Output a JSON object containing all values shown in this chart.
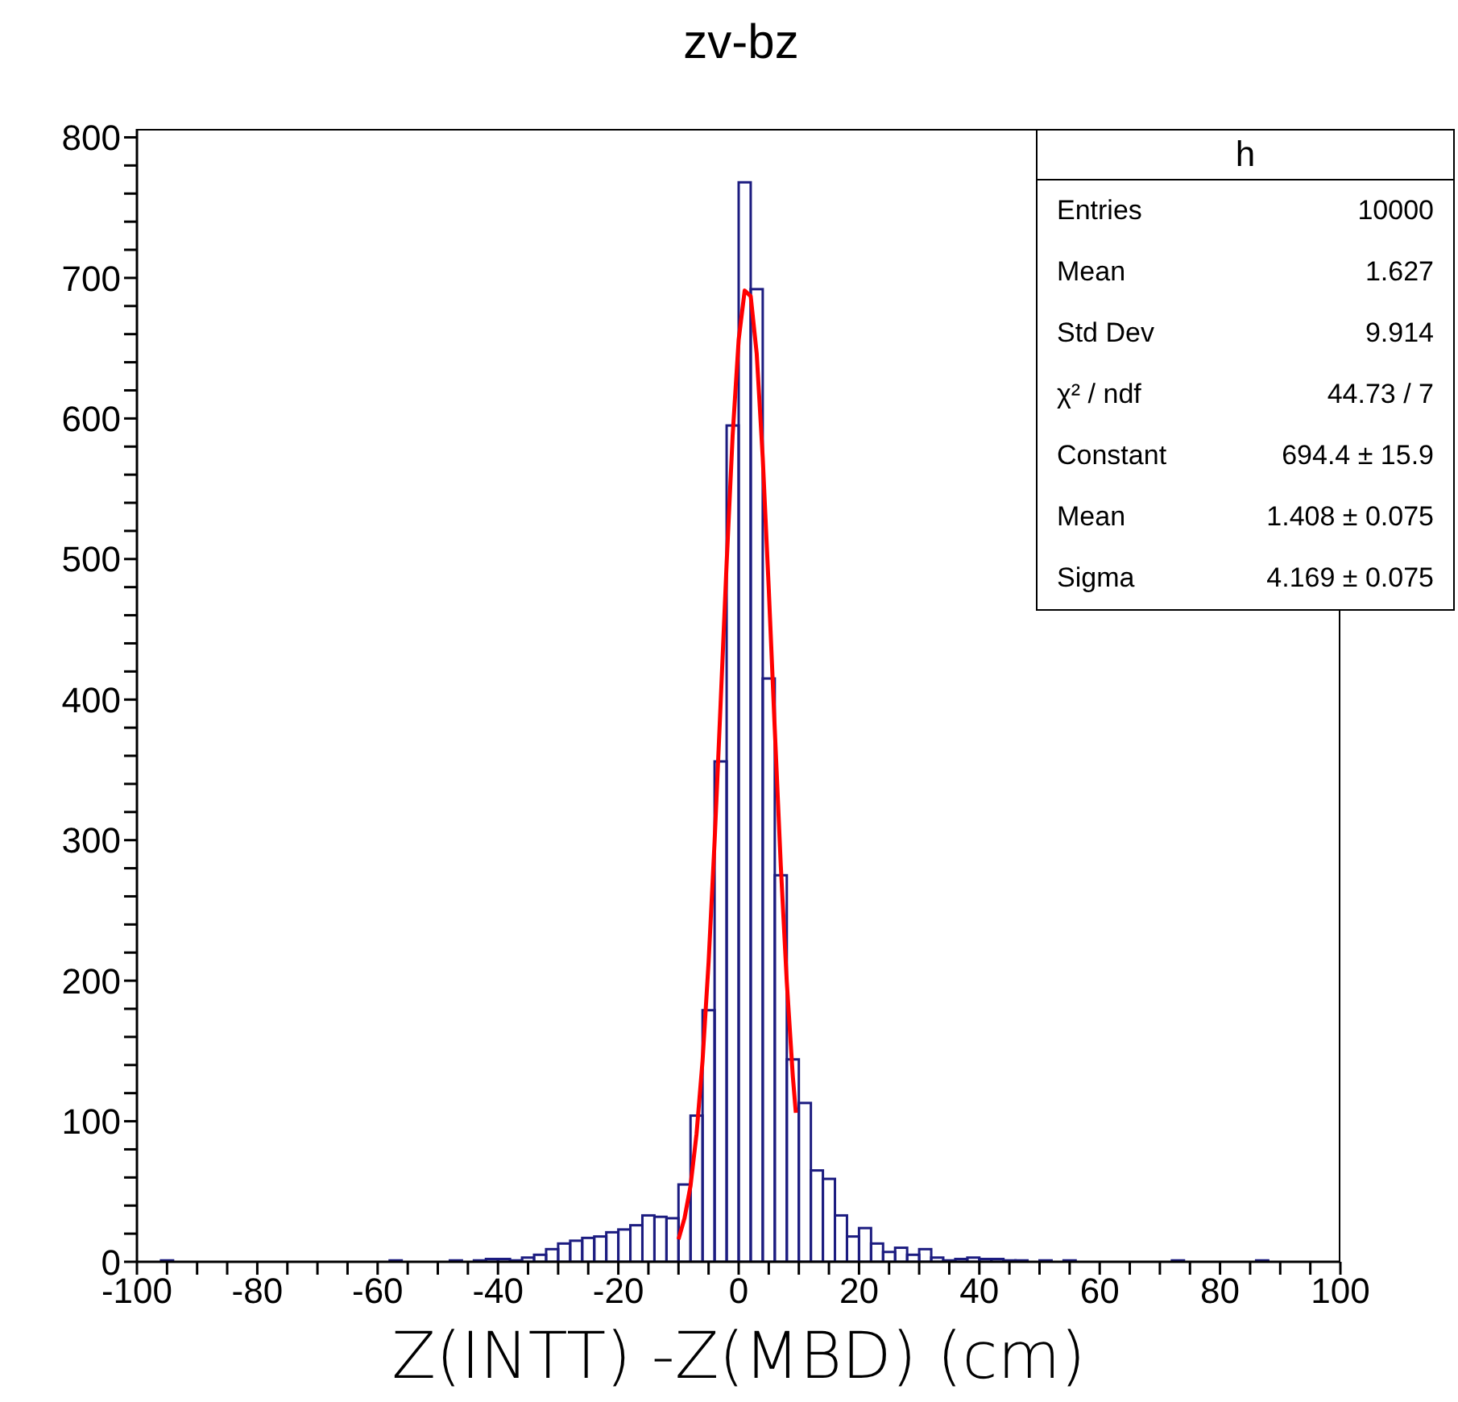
{
  "chart_data": {
    "type": "histogram",
    "title": "zv-bz",
    "xlabel": "Z(INTT) -Z(MBD) (cm)",
    "bins": [
      -100,
      -98,
      -96,
      -94,
      -92,
      -90,
      -88,
      -86,
      -84,
      -82,
      -80,
      -78,
      -76,
      -74,
      -72,
      -70,
      -68,
      -66,
      -64,
      -62,
      -60,
      -58,
      -56,
      -54,
      -52,
      -50,
      -48,
      -46,
      -44,
      -42,
      -40,
      -38,
      -36,
      -34,
      -32,
      -30,
      -28,
      -26,
      -24,
      -22,
      -20,
      -18,
      -16,
      -14,
      -12,
      -10,
      -8,
      -6,
      -4,
      -2,
      0,
      2,
      4,
      6,
      8,
      10,
      12,
      14,
      16,
      18,
      20,
      22,
      24,
      26,
      28,
      30,
      32,
      34,
      36,
      38,
      40,
      42,
      44,
      46,
      48,
      50,
      52,
      54,
      56,
      58,
      60,
      62,
      64,
      66,
      68,
      70,
      72,
      74,
      76,
      78,
      80,
      82,
      84,
      86,
      88,
      90,
      92,
      94,
      96,
      98,
      100
    ],
    "xlim": [
      -100,
      100
    ],
    "xticks": [
      -100,
      {
        "value": -95,
        "label": null
      },
      {
        "value": -90,
        "label": null
      },
      {
        "value": -85,
        "label": null
      },
      -80,
      {
        "value": -75,
        "label": null
      },
      {
        "value": -70,
        "label": null
      },
      {
        "value": -65,
        "label": null
      },
      -60,
      {
        "value": -55,
        "label": null
      },
      {
        "value": -50,
        "label": null
      },
      {
        "value": -45,
        "label": null
      },
      -40,
      {
        "value": -35,
        "label": null
      },
      {
        "value": -30,
        "label": null
      },
      {
        "value": -25,
        "label": null
      },
      -20,
      {
        "value": -15,
        "label": null
      },
      {
        "value": -10,
        "label": null
      },
      {
        "value": -5,
        "label": null
      },
      0,
      {
        "value": 5,
        "label": null
      },
      {
        "value": 10,
        "label": null
      },
      {
        "value": 15,
        "label": null
      },
      20,
      {
        "value": 25,
        "label": null
      },
      {
        "value": 30,
        "label": null
      },
      {
        "value": 35,
        "label": null
      },
      40,
      {
        "value": 45,
        "label": null
      },
      {
        "value": 50,
        "label": null
      },
      {
        "value": 55,
        "label": null
      },
      60,
      {
        "value": 65,
        "label": null
      },
      {
        "value": 70,
        "label": null
      },
      {
        "value": 75,
        "label": null
      },
      80,
      {
        "value": 85,
        "label": null
      },
      {
        "value": 90,
        "label": null
      },
      {
        "value": 95,
        "label": null
      },
      100
    ],
    "ylim": [
      0,
      806
    ],
    "yticks": [
      0,
      {
        "value": 20,
        "label": null
      },
      {
        "value": 40,
        "label": null
      },
      {
        "value": 60,
        "label": null
      },
      {
        "value": 80,
        "label": null
      },
      100,
      {
        "value": 120,
        "label": null
      },
      {
        "value": 140,
        "label": null
      },
      {
        "value": 160,
        "label": null
      },
      {
        "value": 180,
        "label": null
      },
      200,
      {
        "value": 220,
        "label": null
      },
      {
        "value": 240,
        "label": null
      },
      {
        "value": 260,
        "label": null
      },
      {
        "value": 280,
        "label": null
      },
      300,
      {
        "value": 320,
        "label": null
      },
      {
        "value": 340,
        "label": null
      },
      {
        "value": 360,
        "label": null
      },
      {
        "value": 380,
        "label": null
      },
      400,
      {
        "value": 420,
        "label": null
      },
      {
        "value": 440,
        "label": null
      },
      {
        "value": 460,
        "label": null
      },
      {
        "value": 480,
        "label": null
      },
      500,
      {
        "value": 520,
        "label": null
      },
      {
        "value": 540,
        "label": null
      },
      {
        "value": 560,
        "label": null
      },
      {
        "value": 580,
        "label": null
      },
      600,
      {
        "value": 620,
        "label": null
      },
      {
        "value": 640,
        "label": null
      },
      {
        "value": 660,
        "label": null
      },
      {
        "value": 680,
        "label": null
      },
      700,
      {
        "value": 720,
        "label": null
      },
      {
        "value": 740,
        "label": null
      },
      {
        "value": 760,
        "label": null
      },
      {
        "value": 780,
        "label": null
      },
      800
    ],
    "series": [
      {
        "type": "histogram",
        "color": "#1c1c80",
        "values": [
          0,
          0,
          1,
          0,
          0,
          0,
          0,
          0,
          0,
          0,
          0,
          0,
          0,
          0,
          0,
          0,
          0,
          0,
          0,
          0,
          0,
          1,
          0,
          0,
          0,
          0,
          1,
          0,
          1,
          2,
          2,
          1,
          3,
          5,
          9,
          13,
          15,
          17,
          18,
          21,
          23,
          26,
          33,
          32,
          31,
          55,
          104,
          179,
          356,
          595,
          768,
          692,
          415,
          275,
          144,
          113,
          65,
          59,
          33,
          18,
          24,
          13,
          7,
          10,
          5,
          9,
          3,
          1,
          2,
          3,
          2,
          2,
          1,
          1,
          0,
          1,
          0,
          1,
          0,
          0,
          0,
          0,
          0,
          0,
          0,
          0,
          1,
          0,
          0,
          0,
          0,
          0,
          0,
          1,
          0,
          0,
          0,
          0,
          0,
          0
        ]
      },
      {
        "type": "line",
        "color": "#ff0000",
        "x": [
          -10,
          -9,
          -8,
          -7,
          -6,
          -5,
          -4,
          -3,
          -2,
          -1,
          0,
          1,
          2,
          3,
          4,
          5,
          6,
          7,
          8,
          9,
          9.5
        ],
        "values": [
          16,
          31,
          54,
          91,
          143,
          213,
          299,
          397,
          497,
          588,
          656,
          691,
          687,
          646,
          572,
          479,
          379,
          282,
          199,
          132,
          106
        ]
      }
    ],
    "annotations": [
      "h",
      "Entries\t10000",
      "Mean\t1.627",
      "Std Dev\t9.914",
      "χ² / ndf\t44.73 / 7",
      "Constant\t694.4 ± 15.9",
      "Mean\t1.408 ± 0.075",
      "Sigma\t4.169 ± 0.075"
    ]
  }
}
